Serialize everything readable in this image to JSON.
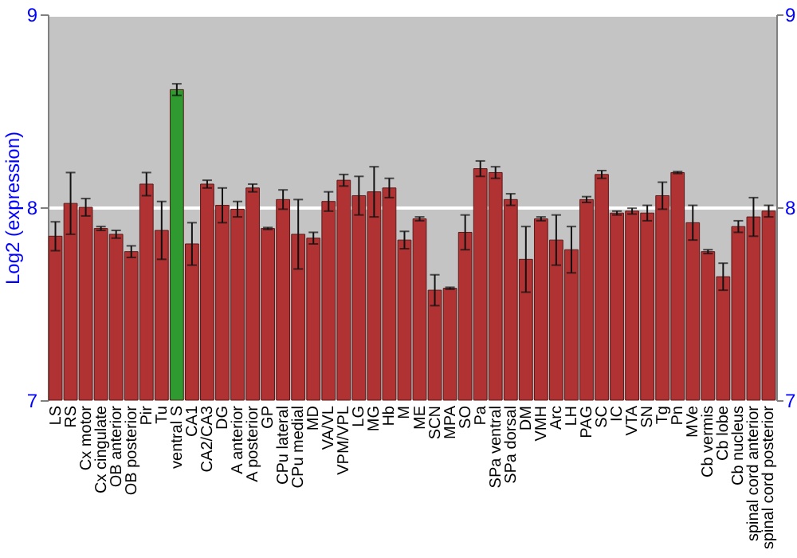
{
  "chart_data": {
    "type": "bar",
    "ylabel": "Log2 (expression)",
    "categories": [
      "LS",
      "RS",
      "Cx motor",
      "Cx cingulate",
      "OB anterior",
      "OB posterior",
      "Pir",
      "Tu",
      "ventral S",
      "CA1",
      "CA2/CA3",
      "DG",
      "A anterior",
      "A posterior",
      "GP",
      "CPu lateral",
      "CPu medial",
      "MD",
      "VA/VL",
      "VPM/VPL",
      "LG",
      "MG",
      "Hb",
      "M",
      "ME",
      "SCN",
      "MPA",
      "SO",
      "Pa",
      "SPa ventral",
      "SPa dorsal",
      "DM",
      "VMH",
      "Arc",
      "LH",
      "PAG",
      "SC",
      "IC",
      "VTA",
      "SN",
      "Tg",
      "Pn",
      "MVe",
      "Cb vermis",
      "Cb lobe",
      "Cb nucleus",
      "spinal cord anterior",
      "spinal cord posterior"
    ],
    "values": [
      7.85,
      8.02,
      8.0,
      7.89,
      7.86,
      7.77,
      8.12,
      7.88,
      8.61,
      7.81,
      8.12,
      8.01,
      7.99,
      8.1,
      7.89,
      8.04,
      7.86,
      7.84,
      8.03,
      8.14,
      8.06,
      8.08,
      8.1,
      7.83,
      7.94,
      7.57,
      7.58,
      7.87,
      8.2,
      8.18,
      8.04,
      7.73,
      7.94,
      7.83,
      7.78,
      8.04,
      8.17,
      7.97,
      7.98,
      7.97,
      8.06,
      8.18,
      7.92,
      7.77,
      7.64,
      7.9,
      7.95,
      7.98
    ],
    "errors": [
      0.075,
      0.16,
      0.045,
      0.01,
      0.02,
      0.03,
      0.06,
      0.15,
      0.03,
      0.11,
      0.02,
      0.09,
      0.04,
      0.02,
      0.005,
      0.05,
      0.18,
      0.03,
      0.05,
      0.03,
      0.1,
      0.13,
      0.05,
      0.045,
      0.01,
      0.08,
      0.005,
      0.09,
      0.04,
      0.03,
      0.03,
      0.17,
      0.01,
      0.13,
      0.12,
      0.015,
      0.02,
      0.01,
      0.015,
      0.04,
      0.07,
      0.005,
      0.09,
      0.01,
      0.07,
      0.03,
      0.1,
      0.03
    ],
    "colors": [
      "#b03232",
      "#b03232",
      "#b03232",
      "#b03232",
      "#b03232",
      "#b03232",
      "#b03232",
      "#b03232",
      "#2f9a2f",
      "#b03232",
      "#b03232",
      "#b03232",
      "#b03232",
      "#b03232",
      "#b03232",
      "#b03232",
      "#b03232",
      "#b03232",
      "#b03232",
      "#b03232",
      "#b03232",
      "#b03232",
      "#b03232",
      "#b03232",
      "#b03232",
      "#b03232",
      "#b03232",
      "#b03232",
      "#b03232",
      "#b03232",
      "#b03232",
      "#b03232",
      "#b03232",
      "#b03232",
      "#b03232",
      "#b03232",
      "#b03232",
      "#b03232",
      "#b03232",
      "#b03232",
      "#b03232",
      "#b03232",
      "#b03232",
      "#b03232",
      "#b03232",
      "#b03232",
      "#b03232",
      "#b03232"
    ],
    "ylim": [
      7,
      9
    ],
    "yticks": [
      7,
      8,
      9
    ],
    "y2lim": [
      7,
      9
    ],
    "y2ticks": [
      7,
      8,
      9
    ],
    "grid": "y"
  }
}
